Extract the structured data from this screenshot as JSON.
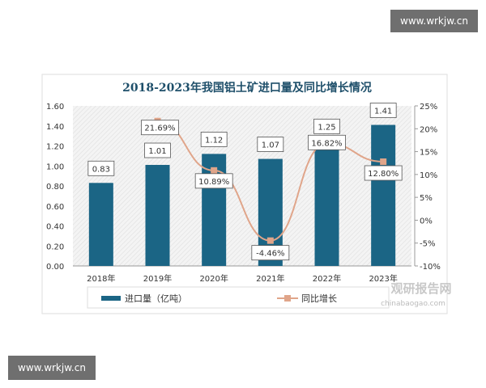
{
  "watermarks": [
    "www.wrkjw.cn",
    "www.wrkjw.cn"
  ],
  "brand": {
    "name": "观研报告网",
    "url": "chinabaogao.com"
  },
  "chart_data": {
    "type": "bar+line",
    "title": "2018-2023年我国铝土矿进口量及同比增长情况",
    "categories": [
      "2018年",
      "2019年",
      "2020年",
      "2021年",
      "2022年",
      "2023年"
    ],
    "series": [
      {
        "name": "进口量（亿吨）",
        "type": "bar",
        "axis": "left",
        "values": [
          0.83,
          1.01,
          1.12,
          1.07,
          1.25,
          1.41
        ],
        "labels": [
          "0.83",
          "1.01",
          "1.12",
          "1.07",
          "1.25",
          "1.41"
        ],
        "color": "#1b6585"
      },
      {
        "name": "同比增长",
        "type": "line",
        "axis": "right",
        "values": [
          null,
          21.69,
          10.89,
          -4.46,
          16.82,
          12.8
        ],
        "labels": [
          "",
          "21.69%",
          "10.89%",
          "-4.46%",
          "16.82%",
          "12.80%"
        ],
        "color": "#e0a58a"
      }
    ],
    "y_left": {
      "range": [
        0,
        1.6
      ],
      "ticks": [
        "0.00",
        "0.20",
        "0.40",
        "0.60",
        "0.80",
        "1.00",
        "1.20",
        "1.40",
        "1.60"
      ]
    },
    "y_right": {
      "range": [
        -10,
        25
      ],
      "ticks": [
        "-10%",
        "-5%",
        "0%",
        "5%",
        "10%",
        "15%",
        "20%",
        "25%"
      ]
    },
    "legend": "bottom",
    "grid": false
  }
}
